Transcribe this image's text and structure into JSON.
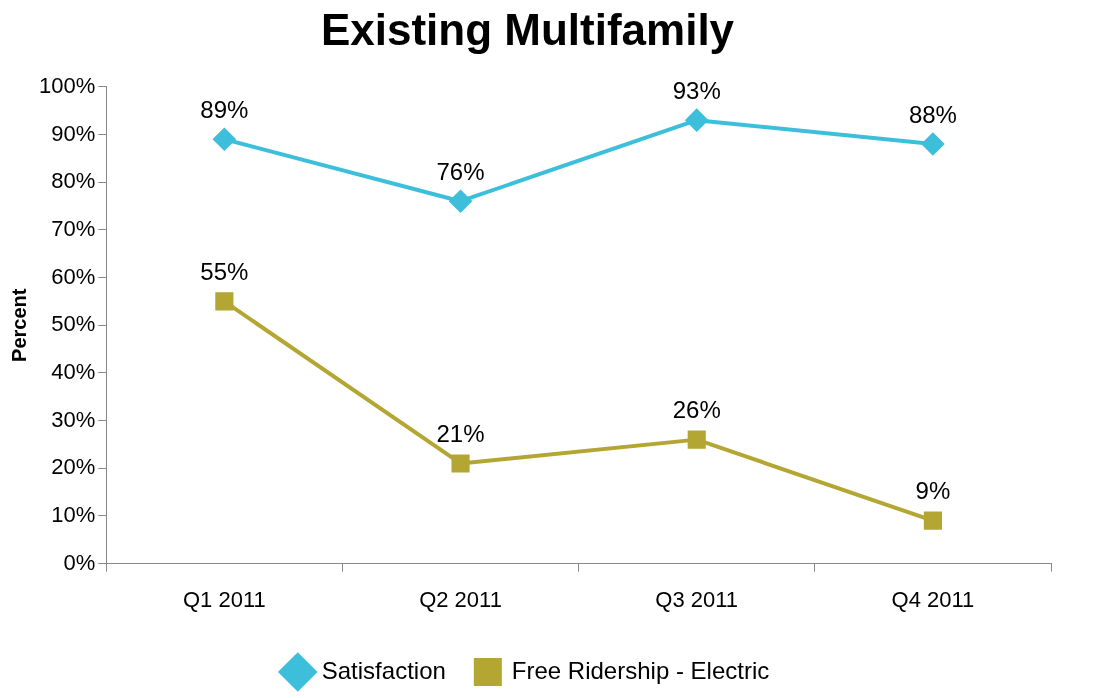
{
  "chart_data": {
    "type": "line",
    "title": "Existing Multifamily",
    "ylabel": "Percent",
    "categories": [
      "Q1 2011",
      "Q2 2011",
      "Q3 2011",
      "Q4 2011"
    ],
    "series": [
      {
        "name": "Satisfaction",
        "color": "#3dbfdb",
        "marker": "diamond",
        "values": [
          89,
          76,
          93,
          88
        ],
        "value_labels": [
          "89%",
          "76%",
          "93%",
          "88%"
        ]
      },
      {
        "name": "Free Ridership - Electric",
        "color": "#b4a632",
        "marker": "square",
        "values": [
          55,
          21,
          26,
          9
        ],
        "value_labels": [
          "55%",
          "21%",
          "26%",
          "9%"
        ]
      }
    ],
    "ylim": [
      0,
      100
    ],
    "yticks": [
      {
        "value": 0,
        "label": "0%"
      },
      {
        "value": 10,
        "label": "10%"
      },
      {
        "value": 20,
        "label": "20%"
      },
      {
        "value": 30,
        "label": "30%"
      },
      {
        "value": 40,
        "label": "40%"
      },
      {
        "value": 50,
        "label": "50%"
      },
      {
        "value": 60,
        "label": "60%"
      },
      {
        "value": 70,
        "label": "70%"
      },
      {
        "value": 80,
        "label": "80%"
      },
      {
        "value": 90,
        "label": "90%"
      },
      {
        "value": 100,
        "label": "100%"
      }
    ],
    "grid": false,
    "legend": "bottom",
    "line_style": "solid"
  }
}
